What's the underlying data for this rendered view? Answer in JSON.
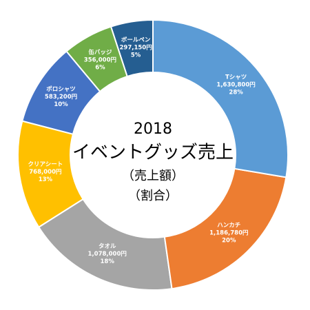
{
  "chart_data": {
    "type": "donut",
    "title_lines": [
      "2018",
      "イベントグッズ売上",
      "（売上額）",
      "（割合）"
    ],
    "categories": [
      "Tシャツ",
      "ハンカチ",
      "タオル",
      "クリアシート",
      "ポロシャツ",
      "缶バッジ",
      "ボールペン"
    ],
    "values": [
      1630800,
      1186780,
      1078000,
      768000,
      583200,
      356000,
      297150
    ],
    "value_labels": [
      "1,630,800円",
      "1,186,780円",
      "1,078,000円",
      "768,000円",
      "583,200円",
      "356,000円",
      "297,150円"
    ],
    "percents": [
      28,
      20,
      18,
      13,
      10,
      6,
      5
    ],
    "percent_labels": [
      "28%",
      "20%",
      "18%",
      "13%",
      "10%",
      "6%",
      "5%"
    ],
    "colors": [
      "#5b9bd5",
      "#ed7d31",
      "#a5a5a5",
      "#ffc000",
      "#4472c4",
      "#70ad47",
      "#255e91"
    ]
  }
}
